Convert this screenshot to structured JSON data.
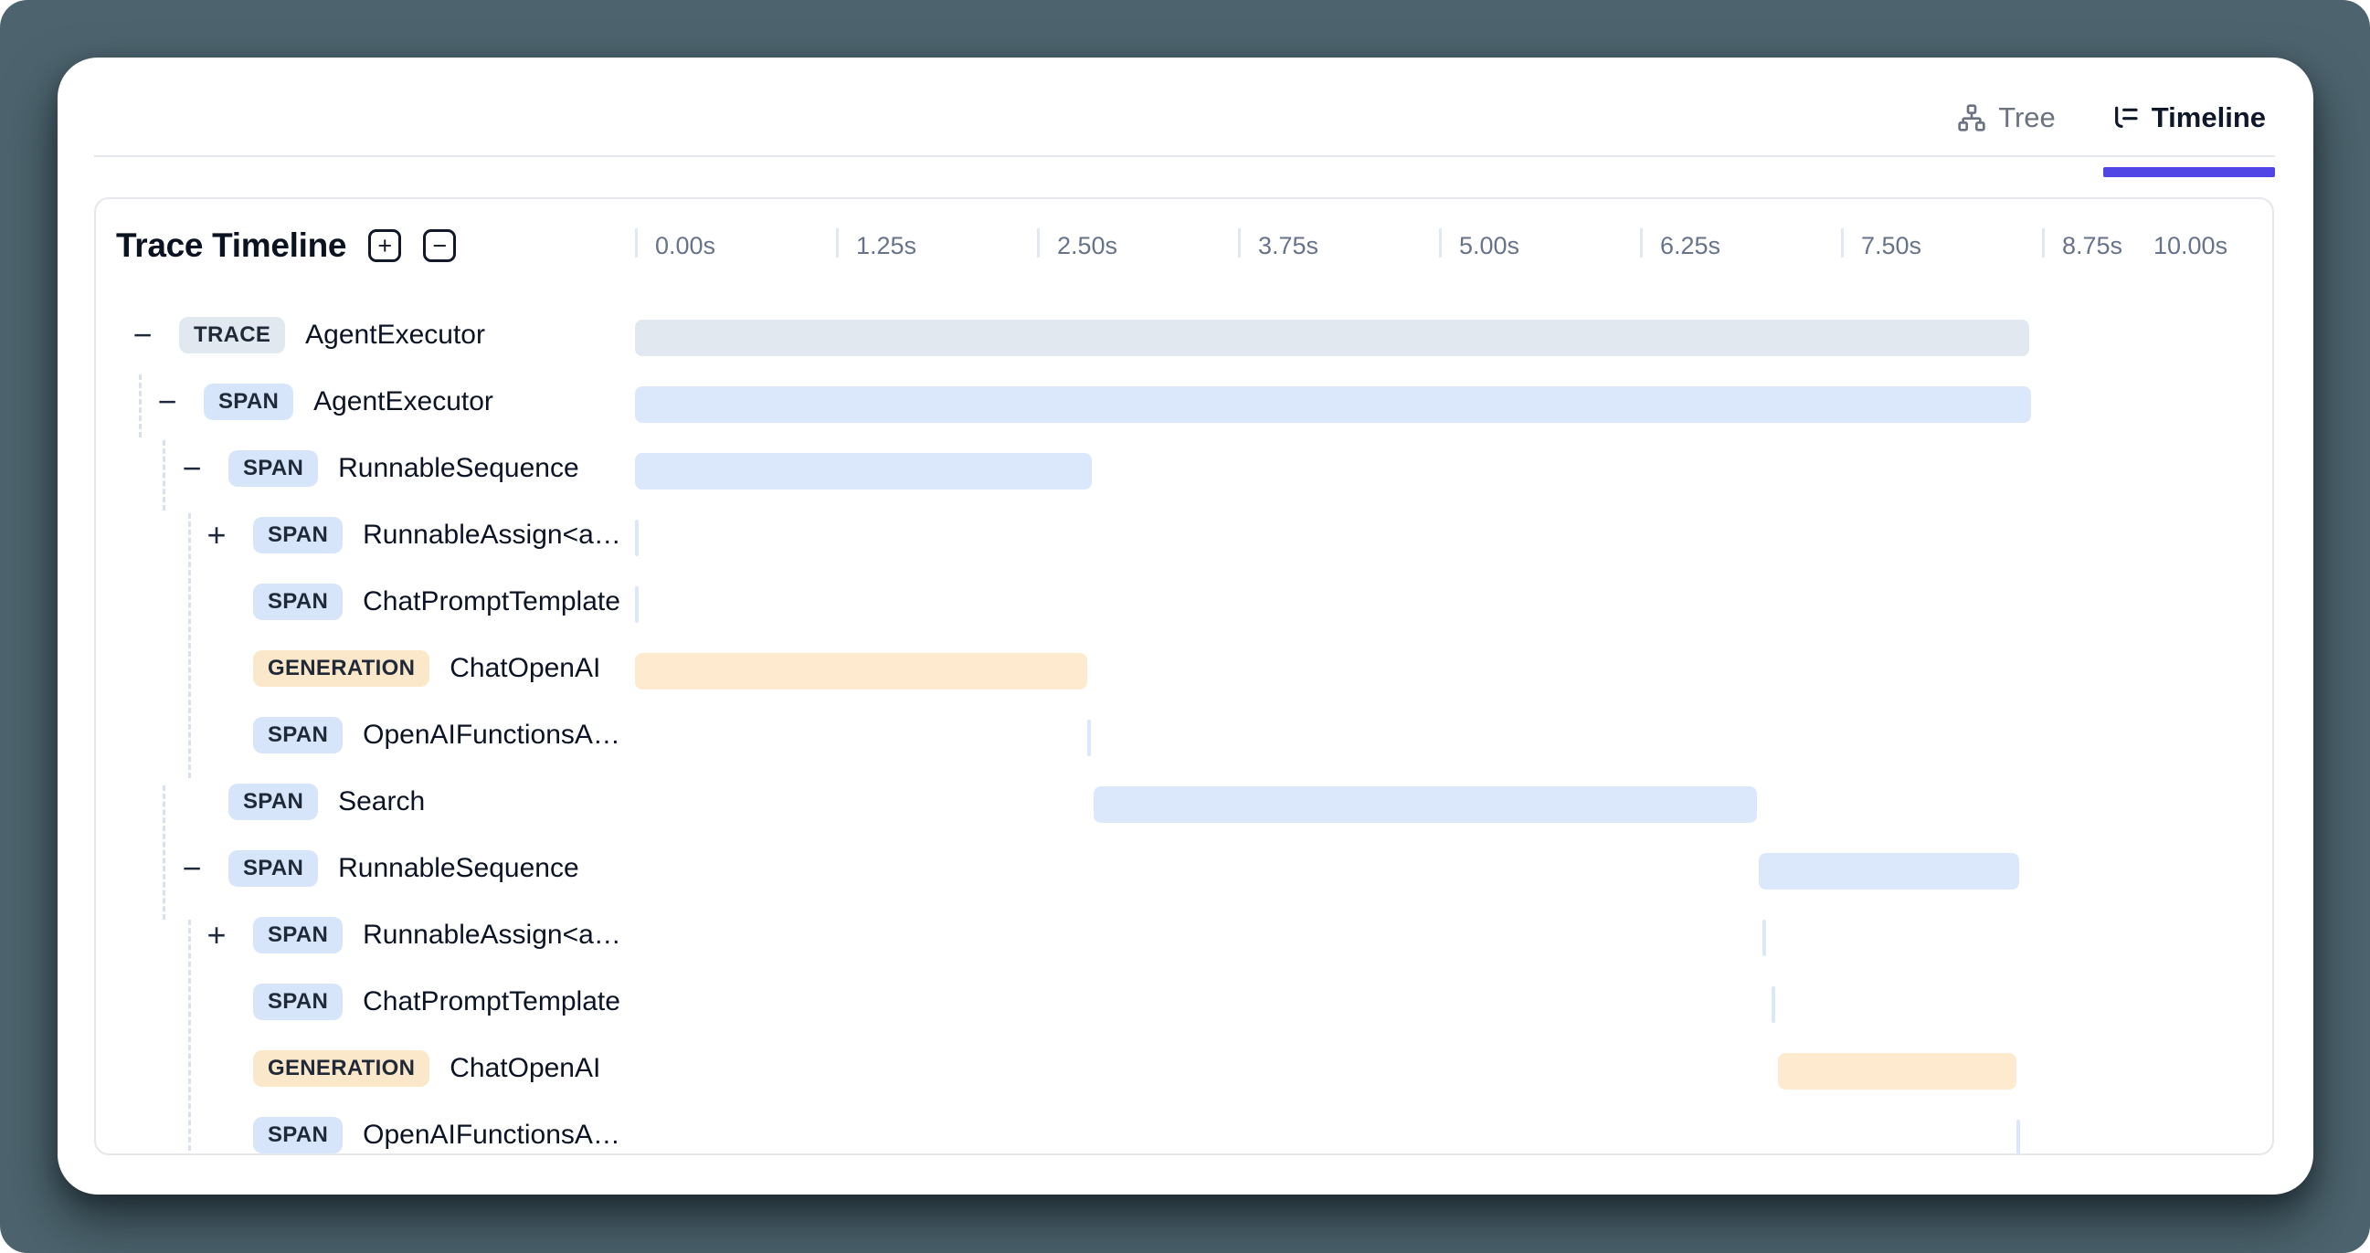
{
  "tabs": {
    "tree": {
      "label": "Tree"
    },
    "timeline": {
      "label": "Timeline"
    }
  },
  "panel": {
    "title": "Trace Timeline",
    "zoom_in_label": "+",
    "zoom_out_label": "−"
  },
  "timeline": {
    "duration_s": 10,
    "ticks": [
      {
        "label": "0.00s",
        "sec": 0
      },
      {
        "label": "1.25s",
        "sec": 1.25
      },
      {
        "label": "2.50s",
        "sec": 2.5
      },
      {
        "label": "3.75s",
        "sec": 3.75
      },
      {
        "label": "5.00s",
        "sec": 5
      },
      {
        "label": "6.25s",
        "sec": 6.25
      },
      {
        "label": "7.50s",
        "sec": 7.5
      },
      {
        "label": "8.75s",
        "sec": 8.75
      },
      {
        "label": "10.00s",
        "sec": 10
      }
    ]
  },
  "rows": [
    {
      "badge": "TRACE",
      "kind": "trace",
      "name": "AgentExecutor",
      "level": 0,
      "toggle": "−",
      "start_s": 0.0,
      "end_s": 8.67
    },
    {
      "badge": "SPAN",
      "kind": "span",
      "name": "AgentExecutor",
      "level": 1,
      "toggle": "−",
      "start_s": 0.0,
      "end_s": 8.68
    },
    {
      "badge": "SPAN",
      "kind": "span",
      "name": "RunnableSequence",
      "level": 2,
      "toggle": "−",
      "start_s": 0.0,
      "end_s": 2.84
    },
    {
      "badge": "SPAN",
      "kind": "span",
      "name": "RunnableAssign<a…",
      "level": 3,
      "toggle": "+",
      "start_s": 0.0,
      "end_s": 0.02
    },
    {
      "badge": "SPAN",
      "kind": "span",
      "name": "ChatPromptTemplate",
      "level": 3,
      "toggle": "",
      "start_s": 0.0,
      "end_s": 0.02
    },
    {
      "badge": "GENERATION",
      "kind": "generation",
      "name": "ChatOpenAI",
      "level": 3,
      "toggle": "",
      "start_s": 0.0,
      "end_s": 2.81
    },
    {
      "badge": "SPAN",
      "kind": "span",
      "name": "OpenAIFunctionsA…",
      "level": 3,
      "toggle": "",
      "start_s": 2.81,
      "end_s": 2.83
    },
    {
      "badge": "SPAN",
      "kind": "span",
      "name": "Search",
      "level": 2,
      "toggle": "",
      "start_s": 2.85,
      "end_s": 6.98
    },
    {
      "badge": "SPAN",
      "kind": "span",
      "name": "RunnableSequence",
      "level": 2,
      "toggle": "−",
      "start_s": 6.99,
      "end_s": 8.61
    },
    {
      "badge": "SPAN",
      "kind": "span",
      "name": "RunnableAssign<a…",
      "level": 3,
      "toggle": "+",
      "start_s": 7.01,
      "end_s": 7.03
    },
    {
      "badge": "SPAN",
      "kind": "span",
      "name": "ChatPromptTemplate",
      "level": 3,
      "toggle": "",
      "start_s": 7.07,
      "end_s": 7.09
    },
    {
      "badge": "GENERATION",
      "kind": "generation",
      "name": "ChatOpenAI",
      "level": 3,
      "toggle": "",
      "start_s": 7.11,
      "end_s": 8.59
    },
    {
      "badge": "SPAN",
      "kind": "span",
      "name": "OpenAIFunctionsA…",
      "level": 3,
      "toggle": "",
      "start_s": 8.59,
      "end_s": 8.61
    }
  ],
  "colors": {
    "background": "#4d646e",
    "accent_underline": "#4f46e5",
    "trace": "#e2e8f0",
    "span": "#dbe7fb",
    "generation": "#fdeacf"
  }
}
